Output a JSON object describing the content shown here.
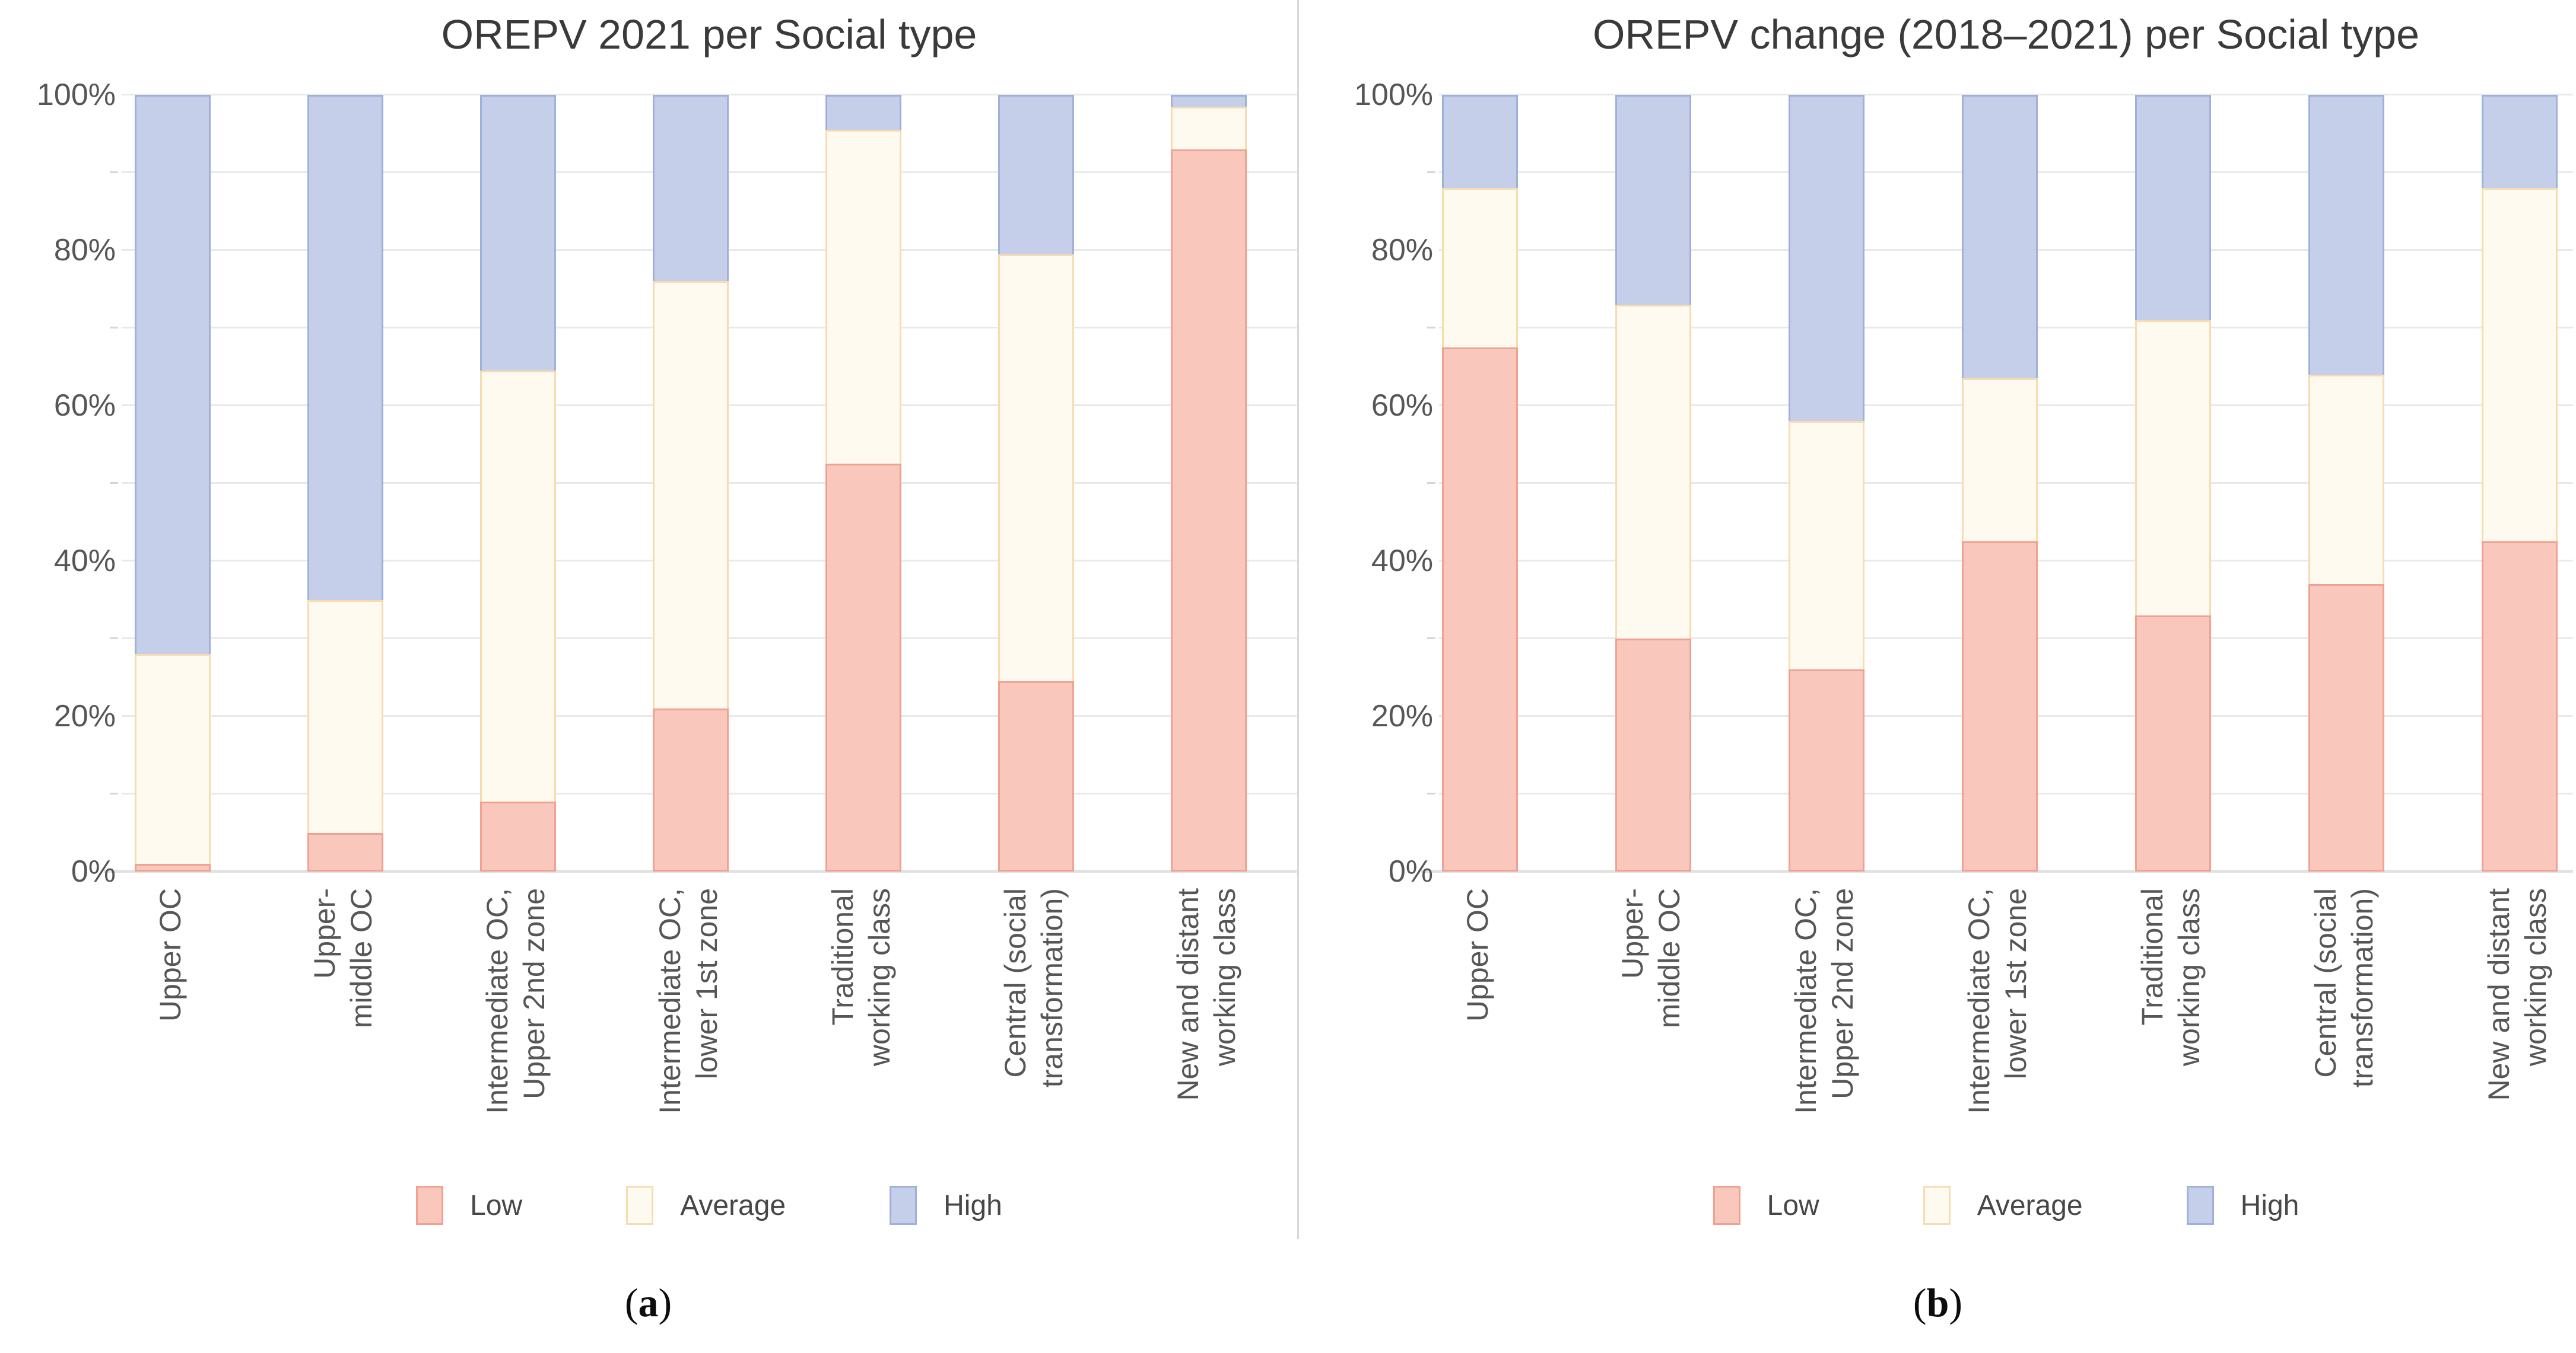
{
  "colors": {
    "low_fill": "#f9c7bc",
    "low_stroke": "#efa292",
    "average_fill": "#fffaf0",
    "average_stroke": "#f8dcb1",
    "high_fill": "#c5cfea",
    "high_stroke": "#9fb1db",
    "gridline": "#e9e9e9",
    "baseline": "#e2e2e2",
    "tickmark": "#d5d5d5",
    "title_text": "#3a3a3a",
    "axis_text": "#565656",
    "legend_text": "#474747",
    "divider": "#d8d8d8"
  },
  "captions": {
    "a": {
      "open": "(",
      "letter": "a",
      "close": ")"
    },
    "b": {
      "open": "(",
      "letter": "b",
      "close": ")"
    }
  },
  "chart_data": [
    {
      "type": "bar",
      "stacked": true,
      "percent": true,
      "title": "OREPV 2021 per Social type",
      "xlabel": "",
      "ylabel": "",
      "ylim": [
        0,
        100
      ],
      "grid_interval": 10,
      "legend_position": "bottom",
      "yticks": [
        {
          "label": "0%",
          "value": 0
        },
        {
          "label": "20%",
          "value": 20
        },
        {
          "label": "40%",
          "value": 40
        },
        {
          "label": "60%",
          "value": 60
        },
        {
          "label": "80%",
          "value": 80
        },
        {
          "label": "100%",
          "value": 100
        }
      ],
      "categories": [
        {
          "label": "Upper OC",
          "lines": [
            "Upper OC"
          ]
        },
        {
          "label": "Upper-middle OC",
          "lines": [
            "Upper-",
            "middle OC"
          ]
        },
        {
          "label": "Intermediate OC, Upper 2nd zone",
          "lines": [
            "Intermediate OC,",
            "Upper 2nd zone"
          ]
        },
        {
          "label": "Intermediate OC, lower 1st zone",
          "lines": [
            "Intermediate OC,",
            "lower 1st zone"
          ]
        },
        {
          "label": "Traditional working class",
          "lines": [
            "Traditional",
            "working class"
          ]
        },
        {
          "label": "Central (social transformation)",
          "lines": [
            "Central (social",
            "transformation)"
          ]
        },
        {
          "label": "New and distant working class",
          "lines": [
            "New and distant",
            "working class"
          ]
        }
      ],
      "series": [
        {
          "key": "low",
          "name": "Low",
          "values": [
            1,
            5,
            9,
            21,
            52.5,
            24.5,
            93
          ]
        },
        {
          "key": "average",
          "name": "Average",
          "values": [
            27,
            30,
            55.5,
            55,
            43,
            55,
            5.5
          ]
        },
        {
          "key": "high",
          "name": "High",
          "values": [
            72,
            65,
            35.5,
            24,
            4.5,
            20.5,
            1.5
          ]
        }
      ]
    },
    {
      "type": "bar",
      "stacked": true,
      "percent": true,
      "title": "OREPV change (2018–2021) per Social type",
      "xlabel": "",
      "ylabel": "",
      "ylim": [
        0,
        100
      ],
      "grid_interval": 10,
      "legend_position": "bottom",
      "yticks": [
        {
          "label": "0%",
          "value": 0
        },
        {
          "label": "20%",
          "value": 20
        },
        {
          "label": "40%",
          "value": 40
        },
        {
          "label": "60%",
          "value": 60
        },
        {
          "label": "80%",
          "value": 80
        },
        {
          "label": "100%",
          "value": 100
        }
      ],
      "categories": [
        {
          "label": "Upper OC",
          "lines": [
            "Upper OC"
          ]
        },
        {
          "label": "Upper-middle OC",
          "lines": [
            "Upper-",
            "middle OC"
          ]
        },
        {
          "label": "Intermediate OC, Upper 2nd zone",
          "lines": [
            "Intermediate OC,",
            "Upper 2nd zone"
          ]
        },
        {
          "label": "Intermediate OC, lower 1st zone",
          "lines": [
            "Intermediate OC,",
            "lower 1st zone"
          ]
        },
        {
          "label": "Traditional working class",
          "lines": [
            "Traditional",
            "working class"
          ]
        },
        {
          "label": "Central (social transformation)",
          "lines": [
            "Central (social",
            "transformation)"
          ]
        },
        {
          "label": "New and distant working class",
          "lines": [
            "New and distant",
            "working class"
          ]
        }
      ],
      "series": [
        {
          "key": "low",
          "name": "Low",
          "values": [
            67.5,
            30,
            26,
            42.5,
            33,
            37,
            42.5
          ]
        },
        {
          "key": "average",
          "name": "Average",
          "values": [
            20.5,
            43,
            32,
            21,
            38,
            27,
            45.5
          ]
        },
        {
          "key": "high",
          "name": "High",
          "values": [
            12,
            27,
            42,
            36.5,
            29,
            36,
            12
          ]
        }
      ]
    }
  ]
}
